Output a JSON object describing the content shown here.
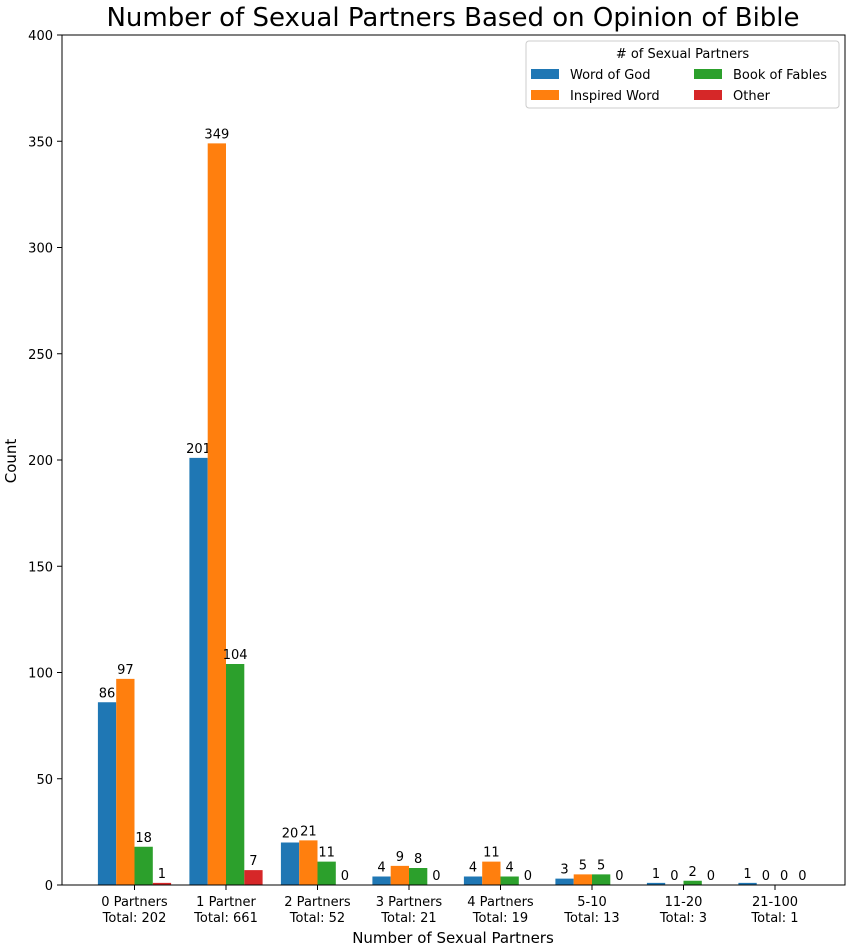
{
  "chart_data": {
    "type": "bar",
    "title": "Number of Sexual Partners Based on Opinion of Bible",
    "xlabel": "Number of Sexual Partners",
    "ylabel": "Count",
    "ylim": [
      0,
      400
    ],
    "yticks": [
      0,
      50,
      100,
      150,
      200,
      250,
      300,
      350,
      400
    ],
    "categories": [
      [
        "0 Partners",
        "Total: 202"
      ],
      [
        "1 Partner",
        "Total: 661"
      ],
      [
        "2 Partners",
        "Total: 52"
      ],
      [
        "3 Partners",
        "Total: 21"
      ],
      [
        "4 Partners",
        "Total: 19"
      ],
      [
        "5-10",
        "Total: 13"
      ],
      [
        "11-20",
        "Total: 3"
      ],
      [
        "21-100",
        "Total: 1"
      ]
    ],
    "series": [
      {
        "name": "Word of God",
        "color": "#1f77b4",
        "values": [
          86,
          201,
          20,
          4,
          4,
          3,
          1,
          1
        ]
      },
      {
        "name": "Inspired Word",
        "color": "#ff7f0e",
        "values": [
          97,
          349,
          21,
          9,
          11,
          5,
          0,
          0
        ]
      },
      {
        "name": "Book of Fables",
        "color": "#2ca02c",
        "values": [
          18,
          104,
          11,
          8,
          4,
          5,
          2,
          0
        ]
      },
      {
        "name": "Other",
        "color": "#d62728",
        "values": [
          1,
          7,
          0,
          0,
          0,
          0,
          0,
          0
        ]
      }
    ],
    "legend": {
      "title": "# of Sexual Partners",
      "placement": "top-right",
      "columns": 2
    },
    "grid": false
  }
}
